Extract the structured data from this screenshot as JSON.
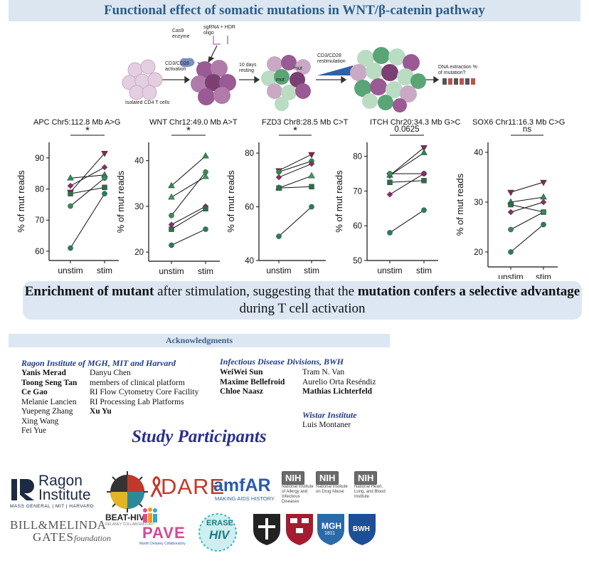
{
  "title": "Functional effect of somatic mutations in WNT/β-catenin pathway",
  "schematic": {
    "cas9": "Cas9 enzyme",
    "sgrna": "sgRNA + HDR oligo",
    "activation": "CD3/CD28 activation",
    "isolated": "Isolated CD4 T cells",
    "resting": "10 days resting",
    "mut1": "mut",
    "mut2": "mut",
    "restim": "CD3/CD28 restimulation",
    "extraction": "DNA extraction % of mutation?"
  },
  "colors": {
    "banner_bg": "#dbe6f1",
    "banner_text": "#2e5d87",
    "summary_bg": "#dce7f3",
    "institution": "#1f3a8a",
    "study": "#2a2f8f",
    "purple": "#7b3f74",
    "light_purple": "#c9a9c4",
    "green": "#5aa575",
    "light_green": "#b9dcc3"
  },
  "chart_data": [
    {
      "type": "scatter",
      "title": "APC Chr5:112.8 Mb  A>G",
      "categories": [
        "unstim",
        "stim"
      ],
      "ylabel": "% of mut reads",
      "ylim": [
        57,
        95
      ],
      "yticks": [
        60,
        70,
        80,
        90
      ],
      "significance": "*",
      "pairs": [
        {
          "marker": "triangle-down",
          "color": "#7b2d52",
          "values": [
            79,
            91.5
          ]
        },
        {
          "marker": "triangle-up",
          "color": "#2d8a52",
          "values": [
            83.5,
            84.5
          ]
        },
        {
          "marker": "diamond",
          "color": "#8a2d6a",
          "values": [
            81,
            87
          ]
        },
        {
          "marker": "square",
          "color": "#2d6e4a",
          "values": [
            78.5,
            80.5
          ]
        },
        {
          "marker": "circle",
          "color": "#3a8a5a",
          "values": [
            74.5,
            83.5
          ]
        },
        {
          "marker": "circle",
          "color": "#2a7a6a",
          "values": [
            61,
            78.5
          ]
        }
      ]
    },
    {
      "type": "scatter",
      "title": "WNT Chr12:49.0 Mb A>T",
      "categories": [
        "unstim",
        "stim"
      ],
      "ylabel": "% of mut reads",
      "ylim": [
        18,
        44
      ],
      "yticks": [
        20,
        30,
        40
      ],
      "significance": "*",
      "pairs": [
        {
          "marker": "triangle-up",
          "color": "#2d8a52",
          "values": [
            34.5,
            41
          ]
        },
        {
          "marker": "triangle-up",
          "color": "#3a9a5a",
          "values": [
            32,
            36.5
          ]
        },
        {
          "marker": "circle",
          "color": "#3a8a5a",
          "values": [
            28,
            37.5
          ]
        },
        {
          "marker": "diamond",
          "color": "#8a2d6a",
          "values": [
            26,
            30
          ]
        },
        {
          "marker": "square",
          "color": "#2d6e4a",
          "values": [
            25,
            29.5
          ]
        },
        {
          "marker": "circle",
          "color": "#2a7a6a",
          "values": [
            21.5,
            25
          ]
        }
      ]
    },
    {
      "type": "scatter",
      "title": "FZD3 Chr8:28.5 Mb C>T",
      "categories": [
        "unstim",
        "stim"
      ],
      "ylabel": "% of mut reads",
      "ylim": [
        40,
        84
      ],
      "yticks": [
        40,
        60,
        80
      ],
      "significance": "*",
      "pairs": [
        {
          "marker": "triangle-down",
          "color": "#7b2d52",
          "values": [
            73.5,
            79.5
          ]
        },
        {
          "marker": "circle",
          "color": "#2d8a52",
          "values": [
            73,
            77
          ]
        },
        {
          "marker": "diamond",
          "color": "#8a2d6a",
          "values": [
            71,
            76
          ]
        },
        {
          "marker": "triangle-up",
          "color": "#3a9a5a",
          "values": [
            67,
            71.5
          ]
        },
        {
          "marker": "square",
          "color": "#2d6e4a",
          "values": [
            67,
            67.5
          ]
        },
        {
          "marker": "circle",
          "color": "#2a7a6a",
          "values": [
            49,
            60
          ]
        }
      ]
    },
    {
      "type": "scatter",
      "title": "ITCH Chr20:34.3 Mb G>C",
      "categories": [
        "unstim",
        "stim"
      ],
      "ylabel": "% of mut reads",
      "ylim": [
        50,
        84
      ],
      "yticks": [
        50,
        60,
        70,
        80
      ],
      "significance": "0.0625",
      "pairs": [
        {
          "marker": "triangle-down",
          "color": "#7b2d52",
          "values": [
            74.5,
            82.5
          ]
        },
        {
          "marker": "triangle-up",
          "color": "#2d8a52",
          "values": [
            74.5,
            81
          ]
        },
        {
          "marker": "circle",
          "color": "#3a8a5a",
          "values": [
            75,
            75
          ]
        },
        {
          "marker": "square",
          "color": "#2d6e4a",
          "values": [
            72.5,
            73
          ]
        },
        {
          "marker": "diamond",
          "color": "#8a2d6a",
          "values": [
            69,
            75
          ]
        },
        {
          "marker": "circle",
          "color": "#2a7a6a",
          "values": [
            58,
            64.5
          ]
        }
      ]
    },
    {
      "type": "scatter",
      "title": "SOX6  Chr11:16.3 Mb C>G",
      "categories": [
        "unstim",
        "stim"
      ],
      "ylabel": "% of mut reads",
      "ylim": [
        17,
        42
      ],
      "yticks": [
        20,
        30,
        40
      ],
      "significance": "ns",
      "pairs": [
        {
          "marker": "triangle-down",
          "color": "#7b2d52",
          "values": [
            32,
            34
          ]
        },
        {
          "marker": "triangle-up",
          "color": "#2d8a52",
          "values": [
            30,
            31
          ]
        },
        {
          "marker": "square",
          "color": "#2d6e4a",
          "values": [
            29.5,
            28
          ]
        },
        {
          "marker": "diamond",
          "color": "#8a2d6a",
          "values": [
            28,
            30
          ]
        },
        {
          "marker": "circle",
          "color": "#3a8a5a",
          "values": [
            24.5,
            28
          ]
        },
        {
          "marker": "circle",
          "color": "#2a7a6a",
          "values": [
            20,
            25.5
          ]
        }
      ]
    }
  ],
  "summary": {
    "p1_bold": "Enrichment of mutant",
    "p2": " after stimulation, suggesting that the ",
    "p3_bold": "mutation confers a selective advantage",
    "p4": " during T cell activation"
  },
  "acknowledgments": {
    "heading": "Acknowledgments",
    "ragon": {
      "title": "Ragon Institute of MGH, MIT and Harvard",
      "col1": [
        {
          "name": "Yanis Merad",
          "bold": true
        },
        {
          "name": "Toong Seng Tan",
          "bold": true
        },
        {
          "name": "Ce Gao",
          "bold": true
        },
        {
          "name": "Melanie Lancien",
          "bold": false
        },
        {
          "name": "Yuepeng Zhang",
          "bold": false
        },
        {
          "name": "Xing Wang",
          "bold": false
        },
        {
          "name": "Fei Yue",
          "bold": false
        }
      ],
      "col2": [
        {
          "name": "Danyu Chen",
          "bold": false
        },
        {
          "name": "members of clinical platform",
          "bold": false
        },
        {
          "name": "RI Flow Cytometry Core Facility",
          "bold": false
        },
        {
          "name": "RI Processing Lab Platforms",
          "bold": false
        },
        {
          "name": "Xu Yu",
          "bold": true
        }
      ]
    },
    "bwh": {
      "title": "Infectious Disease Divisions, BWH",
      "col1": [
        {
          "name": "WeiWei Sun",
          "bold": true
        },
        {
          "name": "Maxime Bellefroid",
          "bold": true
        },
        {
          "name": "Chloe Naasz",
          "bold": true
        }
      ],
      "col2": [
        {
          "name": "Tram N. Van",
          "bold": false
        },
        {
          "name": "Aurelio Orta Reséndiz",
          "bold": false
        },
        {
          "name": "Mathias Lichterfeld",
          "bold": true
        }
      ]
    },
    "wistar": {
      "title": "Wistar Institute",
      "names": [
        {
          "name": "Luis Montaner",
          "bold": false
        }
      ]
    }
  },
  "study_participants": "Study Participants",
  "logos": {
    "ragon_line1": "Ragon",
    "ragon_line2": "Institute",
    "ragon_sub": "MASS GENERAL  |  MIT  |  HARVARD",
    "dare": "DARE",
    "amfar": "amfAR",
    "amfar_sub": "MAKING AIDS HISTORY",
    "nih1_sub": "National Institute of Allergy and Infectious Diseases",
    "nih2_sub": "National Institute on Drug Abuse",
    "nih3_sub": "National Heart, Lung, and Blood Institute",
    "nih": "NIH",
    "gates_line1": "BILL&MELINDA",
    "gates_line2": "GATES",
    "gates_line3": "foundation",
    "beathiv": "BEAT-HIV",
    "beathiv_sub": "DELANEY COLLABORATORY",
    "pave": "PAVE",
    "pave_sub": "Martin Delaney Collaboratory",
    "erase1": "ERASE",
    "erase2": "HIV",
    "mgh_line1": "MGH",
    "mgh_line2": "1811",
    "bwh": "BWH"
  }
}
